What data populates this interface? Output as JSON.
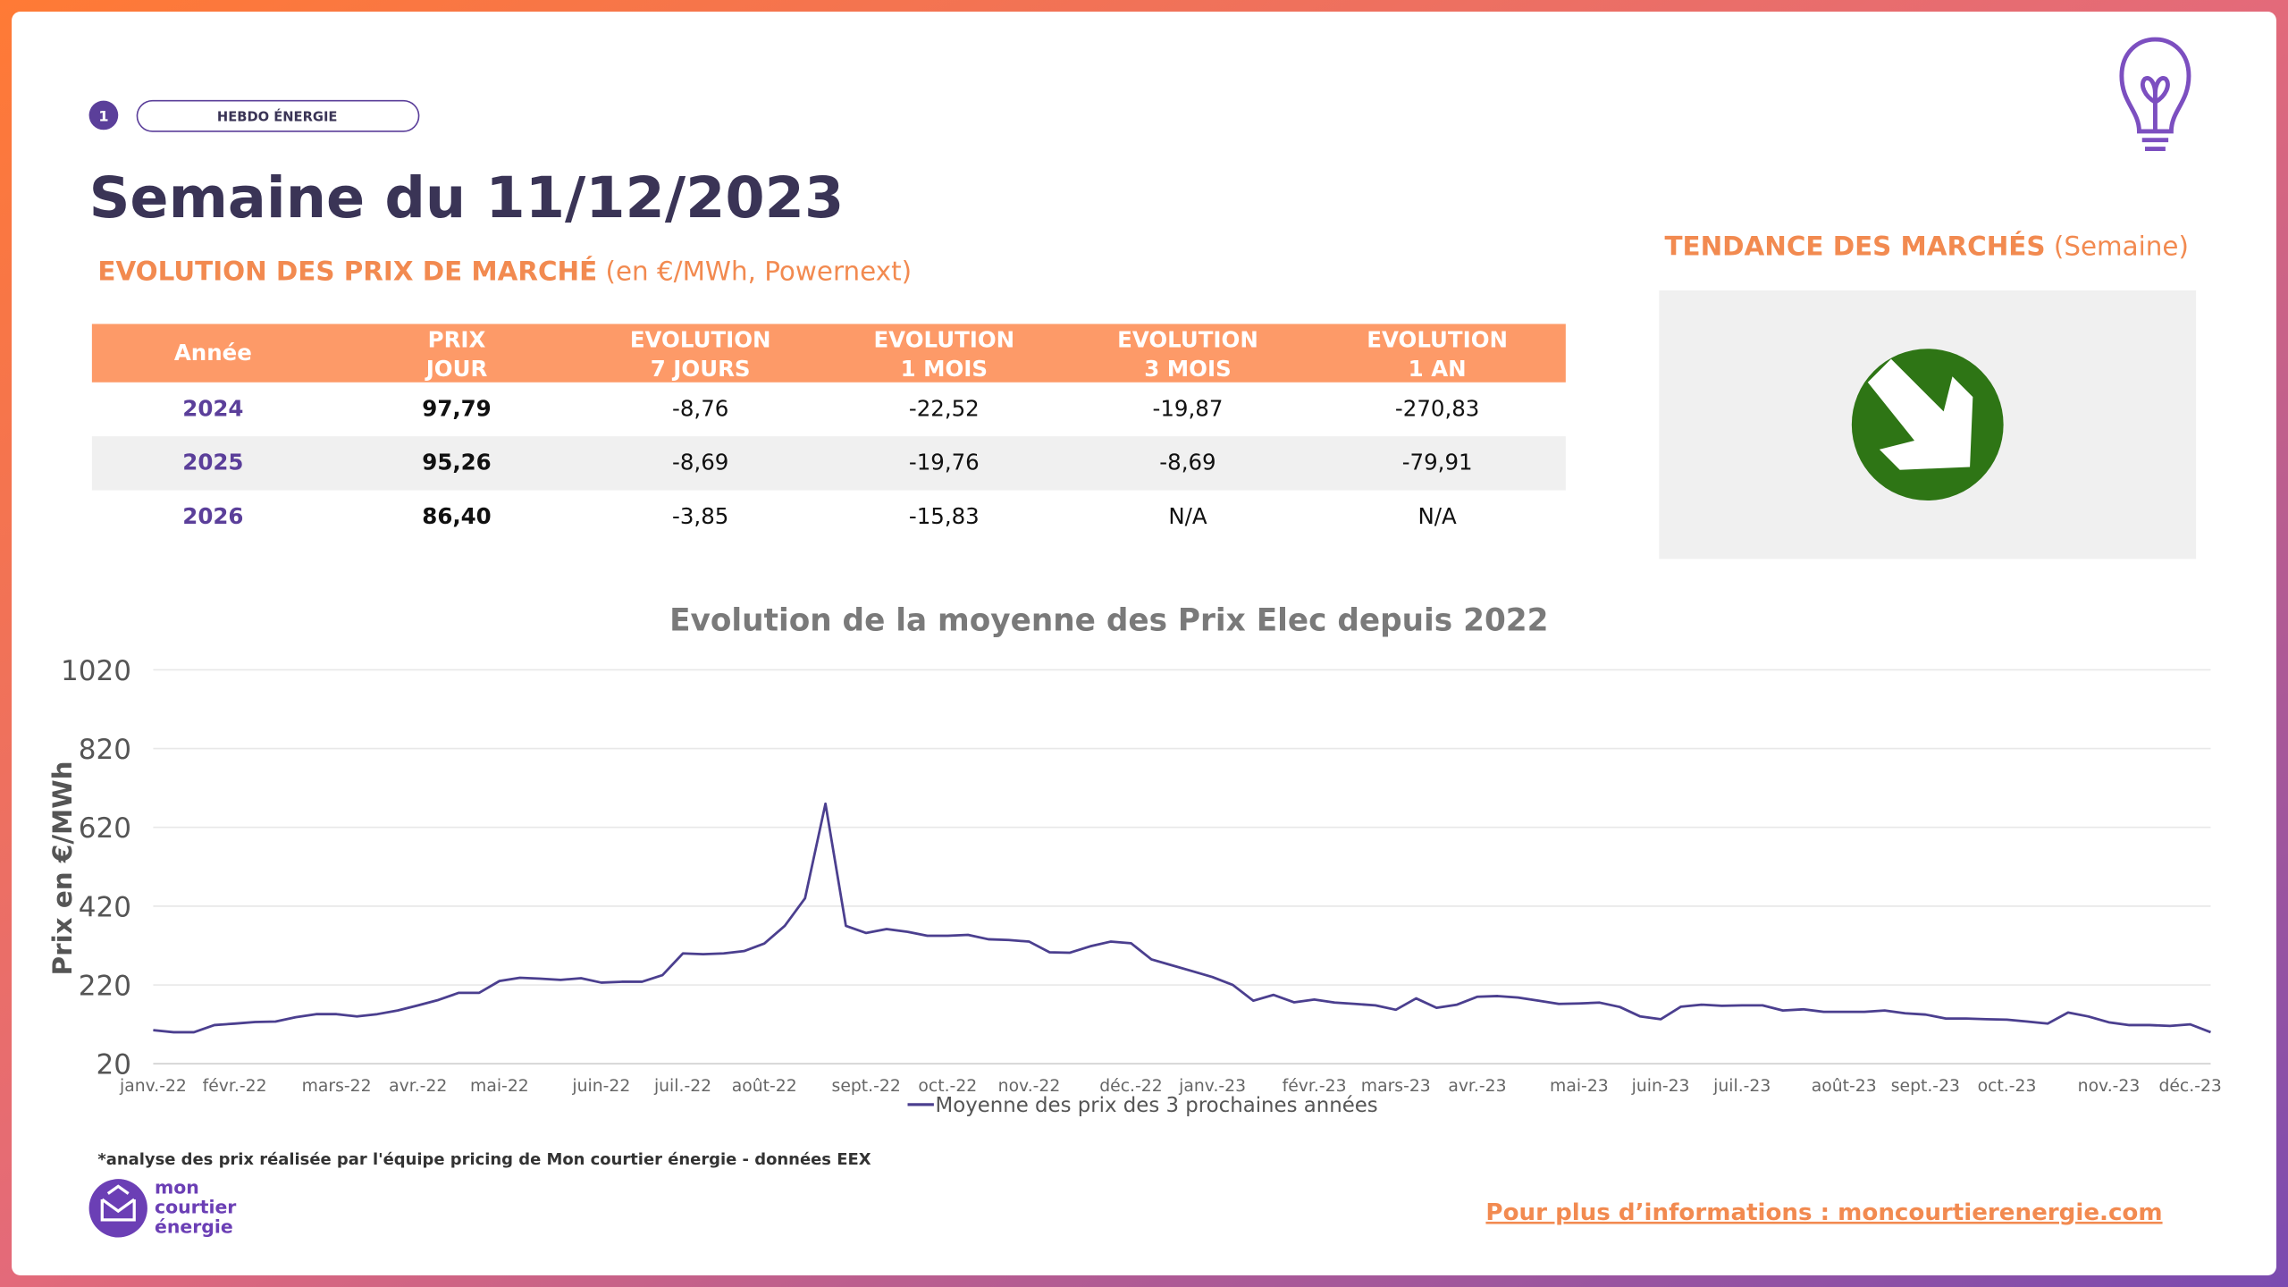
{
  "header": {
    "badge": "1",
    "label": "HEBDO ÉNERGIE",
    "title": "Semaine du 11/12/2023"
  },
  "prices": {
    "title": "EVOLUTION DES PRIX DE MARCHÉ",
    "unit": " (en €/MWh, Powernext)"
  },
  "table": {
    "columns": [
      [
        "Année"
      ],
      [
        "PRIX",
        "JOUR"
      ],
      [
        "EVOLUTION",
        "7 JOURS"
      ],
      [
        "EVOLUTION",
        "1 MOIS"
      ],
      [
        "EVOLUTION",
        "3 MOIS"
      ],
      [
        "EVOLUTION",
        "1 AN"
      ]
    ],
    "rows": [
      [
        "2024",
        "97,79",
        "-8,76",
        "-22,52",
        "-19,87",
        "-270,83"
      ],
      [
        "2025",
        "95,26",
        "-8,69",
        "-19,76",
        "-8,69",
        "-79,91"
      ],
      [
        "2026",
        "86,40",
        "-3,85",
        "-15,83",
        "N/A",
        "N/A"
      ]
    ]
  },
  "trend": {
    "title": "TENDANCE DES MARCHÉS",
    "period": " (Semaine)"
  },
  "chart_data": {
    "type": "line",
    "title": "Evolution de la moyenne des Prix Elec depuis 2022",
    "y_label": "Prix en €/MWh",
    "categories": [
      "janv.-22",
      null,
      null,
      null,
      "févr.-22",
      null,
      null,
      null,
      null,
      "mars-22",
      null,
      null,
      null,
      "avr.-22",
      null,
      null,
      null,
      "mai-22",
      null,
      null,
      null,
      null,
      "juin-22",
      null,
      null,
      null,
      "juil.-22",
      null,
      null,
      null,
      "août-22",
      null,
      null,
      null,
      null,
      "sept.-22",
      null,
      null,
      null,
      "oct.-22",
      null,
      null,
      null,
      "nov.-22",
      null,
      null,
      null,
      null,
      "déc.-22",
      null,
      null,
      null,
      "janv.-23",
      null,
      null,
      null,
      null,
      "févr.-23",
      null,
      null,
      null,
      "mars-23",
      null,
      null,
      null,
      "avr.-23",
      null,
      null,
      null,
      null,
      "mai-23",
      null,
      null,
      null,
      "juin-23",
      null,
      null,
      null,
      "juil.-23",
      null,
      null,
      null,
      null,
      "août-23",
      null,
      null,
      null,
      "sept.-23",
      null,
      null,
      null,
      "oct.-23",
      null,
      null,
      null,
      null,
      "nov.-23",
      null,
      null,
      null,
      "déc.-23",
      null
    ],
    "series": [
      {
        "name": "Moyenne des prix des 3 prochaines années",
        "color": "#4b3f8f",
        "values": [
          105,
          100,
          100,
          118,
          122,
          126,
          127,
          138,
          146,
          146,
          140,
          146,
          155,
          168,
          182,
          200,
          200,
          230,
          238,
          236,
          233,
          237,
          226,
          228,
          228,
          245,
          300,
          298,
          300,
          306,
          325,
          370,
          440,
          680,
          370,
          352,
          362,
          355,
          345,
          345,
          347,
          336,
          334,
          330,
          303,
          302,
          318,
          330,
          326,
          285,
          270,
          255,
          240,
          220,
          180,
          195,
          176,
          183,
          175,
          172,
          168,
          157,
          186,
          162,
          170,
          190,
          192,
          188,
          180,
          172,
          173,
          175,
          164,
          140,
          133,
          165,
          170,
          167,
          168,
          168,
          155,
          158,
          152,
          152,
          152,
          155,
          148,
          145,
          135,
          135,
          133,
          132,
          127,
          122,
          150,
          140,
          125,
          118,
          118,
          116,
          120,
          100
        ]
      }
    ],
    "ylim": [
      20,
      1020
    ],
    "yticks": [
      20,
      220,
      420,
      620,
      820,
      1020
    ],
    "grid": true,
    "legend": "bottom"
  },
  "footnote": "*analyse des prix réalisée par l'équipe pricing de Mon courtier énergie -  données EEX",
  "logo": [
    "mon",
    "courtier",
    "énergie"
  ],
  "link": "Pour plus d’informations : moncourtierenergie.com"
}
